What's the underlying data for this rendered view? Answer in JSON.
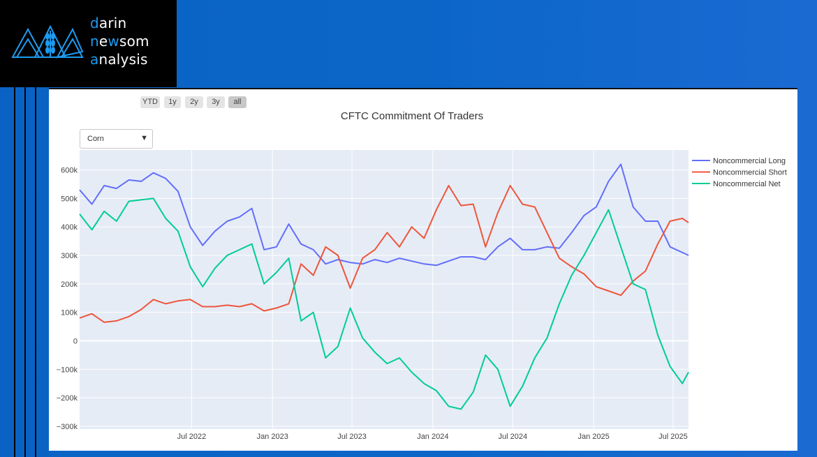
{
  "logo": {
    "lines": [
      {
        "first": "d",
        "rest": "arin"
      },
      {
        "first": "n",
        "second": "e",
        "third": "w",
        "rest": "som"
      },
      {
        "first": "a",
        "rest": "nalysis"
      }
    ],
    "icon": "mountain-wheat-logo-icon",
    "accent_color": "#1d9bf0"
  },
  "range_selector": {
    "buttons": [
      "YTD",
      "1y",
      "2y",
      "3y",
      "all"
    ],
    "active": "all"
  },
  "dropdown": {
    "selected": "Corn",
    "arrow_icon": "caret-down-icon"
  },
  "chart_data": {
    "type": "line",
    "title": "CFTC Commitment Of Traders",
    "xlabel": "",
    "ylabel": "",
    "x_range": [
      "2021-10-19",
      "2025-08-05"
    ],
    "x_ticks": [
      "Jul 2022",
      "Jan 2023",
      "Jul 2023",
      "Jan 2024",
      "Jul 2024",
      "Jan 2025",
      "Jul 2025"
    ],
    "x_tick_dates": [
      "2022-07-01",
      "2023-01-01",
      "2023-07-01",
      "2024-01-01",
      "2024-07-01",
      "2025-01-01",
      "2025-07-01"
    ],
    "ylim": [
      -310000,
      670000
    ],
    "y_ticks": [
      600000,
      500000,
      400000,
      300000,
      200000,
      100000,
      0,
      -100000,
      -200000,
      -300000
    ],
    "y_tick_labels": [
      "600k",
      "500k",
      "400k",
      "300k",
      "200k",
      "100k",
      "0",
      "−100k",
      "−200k",
      "−300k"
    ],
    "grid": true,
    "legend_position": "right",
    "plot_bg": "#e5ecf6",
    "series": [
      {
        "name": "Noncommercial Long",
        "color": "#636efa",
        "points": [
          [
            "2021-10-19",
            530000
          ],
          [
            "2021-11-16",
            480000
          ],
          [
            "2021-12-14",
            545000
          ],
          [
            "2022-01-11",
            535000
          ],
          [
            "2022-02-08",
            565000
          ],
          [
            "2022-03-08",
            560000
          ],
          [
            "2022-04-05",
            590000
          ],
          [
            "2022-05-03",
            570000
          ],
          [
            "2022-05-31",
            525000
          ],
          [
            "2022-06-28",
            400000
          ],
          [
            "2022-07-26",
            335000
          ],
          [
            "2022-08-23",
            385000
          ],
          [
            "2022-09-20",
            420000
          ],
          [
            "2022-10-18",
            435000
          ],
          [
            "2022-11-15",
            465000
          ],
          [
            "2022-12-13",
            320000
          ],
          [
            "2023-01-10",
            330000
          ],
          [
            "2023-02-07",
            410000
          ],
          [
            "2023-03-07",
            340000
          ],
          [
            "2023-04-04",
            320000
          ],
          [
            "2023-05-02",
            270000
          ],
          [
            "2023-05-30",
            285000
          ],
          [
            "2023-06-27",
            275000
          ],
          [
            "2023-07-25",
            270000
          ],
          [
            "2023-08-22",
            285000
          ],
          [
            "2023-09-19",
            275000
          ],
          [
            "2023-10-17",
            290000
          ],
          [
            "2023-11-14",
            280000
          ],
          [
            "2023-12-12",
            270000
          ],
          [
            "2024-01-09",
            265000
          ],
          [
            "2024-02-06",
            280000
          ],
          [
            "2024-03-05",
            295000
          ],
          [
            "2024-04-02",
            295000
          ],
          [
            "2024-04-30",
            285000
          ],
          [
            "2024-05-28",
            330000
          ],
          [
            "2024-06-25",
            360000
          ],
          [
            "2024-07-23",
            320000
          ],
          [
            "2024-08-20",
            320000
          ],
          [
            "2024-09-17",
            330000
          ],
          [
            "2024-10-15",
            325000
          ],
          [
            "2024-11-12",
            380000
          ],
          [
            "2024-12-10",
            440000
          ],
          [
            "2025-01-07",
            470000
          ],
          [
            "2025-02-04",
            560000
          ],
          [
            "2025-03-04",
            620000
          ],
          [
            "2025-04-01",
            470000
          ],
          [
            "2025-04-29",
            420000
          ],
          [
            "2025-05-27",
            420000
          ],
          [
            "2025-06-24",
            330000
          ],
          [
            "2025-07-22",
            310000
          ],
          [
            "2025-08-05",
            300000
          ]
        ]
      },
      {
        "name": "Noncommercial Short",
        "color": "#ef553b",
        "points": [
          [
            "2021-10-19",
            80000
          ],
          [
            "2021-11-16",
            95000
          ],
          [
            "2021-12-14",
            65000
          ],
          [
            "2022-01-11",
            70000
          ],
          [
            "2022-02-08",
            85000
          ],
          [
            "2022-03-08",
            110000
          ],
          [
            "2022-04-05",
            145000
          ],
          [
            "2022-05-03",
            130000
          ],
          [
            "2022-05-31",
            140000
          ],
          [
            "2022-06-28",
            145000
          ],
          [
            "2022-07-26",
            120000
          ],
          [
            "2022-08-23",
            120000
          ],
          [
            "2022-09-20",
            125000
          ],
          [
            "2022-10-18",
            120000
          ],
          [
            "2022-11-15",
            130000
          ],
          [
            "2022-12-13",
            105000
          ],
          [
            "2023-01-10",
            115000
          ],
          [
            "2023-02-07",
            130000
          ],
          [
            "2023-03-07",
            270000
          ],
          [
            "2023-04-04",
            230000
          ],
          [
            "2023-05-02",
            330000
          ],
          [
            "2023-05-30",
            300000
          ],
          [
            "2023-06-27",
            185000
          ],
          [
            "2023-07-25",
            290000
          ],
          [
            "2023-08-22",
            320000
          ],
          [
            "2023-09-19",
            380000
          ],
          [
            "2023-10-17",
            330000
          ],
          [
            "2023-11-14",
            400000
          ],
          [
            "2023-12-12",
            360000
          ],
          [
            "2024-01-09",
            460000
          ],
          [
            "2024-02-06",
            545000
          ],
          [
            "2024-03-05",
            475000
          ],
          [
            "2024-04-02",
            480000
          ],
          [
            "2024-04-30",
            330000
          ],
          [
            "2024-05-28",
            450000
          ],
          [
            "2024-06-25",
            545000
          ],
          [
            "2024-07-23",
            480000
          ],
          [
            "2024-08-20",
            470000
          ],
          [
            "2024-09-17",
            380000
          ],
          [
            "2024-10-15",
            290000
          ],
          [
            "2024-11-12",
            260000
          ],
          [
            "2024-12-10",
            235000
          ],
          [
            "2025-01-07",
            190000
          ],
          [
            "2025-02-04",
            175000
          ],
          [
            "2025-03-04",
            160000
          ],
          [
            "2025-04-01",
            210000
          ],
          [
            "2025-04-29",
            245000
          ],
          [
            "2025-05-27",
            340000
          ],
          [
            "2025-06-24",
            420000
          ],
          [
            "2025-07-22",
            430000
          ],
          [
            "2025-08-05",
            415000
          ]
        ]
      },
      {
        "name": "Noncommercial Net",
        "color": "#00cc96",
        "points": [
          [
            "2021-10-19",
            445000
          ],
          [
            "2021-11-16",
            390000
          ],
          [
            "2021-12-14",
            455000
          ],
          [
            "2022-01-11",
            420000
          ],
          [
            "2022-02-08",
            490000
          ],
          [
            "2022-03-08",
            495000
          ],
          [
            "2022-04-05",
            500000
          ],
          [
            "2022-05-03",
            430000
          ],
          [
            "2022-05-31",
            385000
          ],
          [
            "2022-06-28",
            260000
          ],
          [
            "2022-07-26",
            190000
          ],
          [
            "2022-08-23",
            255000
          ],
          [
            "2022-09-20",
            300000
          ],
          [
            "2022-10-18",
            320000
          ],
          [
            "2022-11-15",
            340000
          ],
          [
            "2022-12-13",
            200000
          ],
          [
            "2023-01-10",
            240000
          ],
          [
            "2023-02-07",
            290000
          ],
          [
            "2023-03-07",
            70000
          ],
          [
            "2023-04-04",
            100000
          ],
          [
            "2023-05-02",
            -60000
          ],
          [
            "2023-05-30",
            -20000
          ],
          [
            "2023-06-27",
            115000
          ],
          [
            "2023-07-25",
            10000
          ],
          [
            "2023-08-22",
            -40000
          ],
          [
            "2023-09-19",
            -80000
          ],
          [
            "2023-10-17",
            -60000
          ],
          [
            "2023-11-14",
            -110000
          ],
          [
            "2023-12-12",
            -150000
          ],
          [
            "2024-01-09",
            -175000
          ],
          [
            "2024-02-06",
            -230000
          ],
          [
            "2024-03-05",
            -240000
          ],
          [
            "2024-04-02",
            -180000
          ],
          [
            "2024-04-30",
            -50000
          ],
          [
            "2024-05-28",
            -100000
          ],
          [
            "2024-06-25",
            -230000
          ],
          [
            "2024-07-23",
            -160000
          ],
          [
            "2024-08-20",
            -60000
          ],
          [
            "2024-09-17",
            10000
          ],
          [
            "2024-10-15",
            130000
          ],
          [
            "2024-11-12",
            230000
          ],
          [
            "2024-12-10",
            300000
          ],
          [
            "2025-01-07",
            380000
          ],
          [
            "2025-02-04",
            460000
          ],
          [
            "2025-03-04",
            330000
          ],
          [
            "2025-04-01",
            200000
          ],
          [
            "2025-04-29",
            180000
          ],
          [
            "2025-05-27",
            20000
          ],
          [
            "2025-06-24",
            -90000
          ],
          [
            "2025-07-22",
            -150000
          ],
          [
            "2025-08-05",
            -110000
          ]
        ]
      }
    ]
  }
}
